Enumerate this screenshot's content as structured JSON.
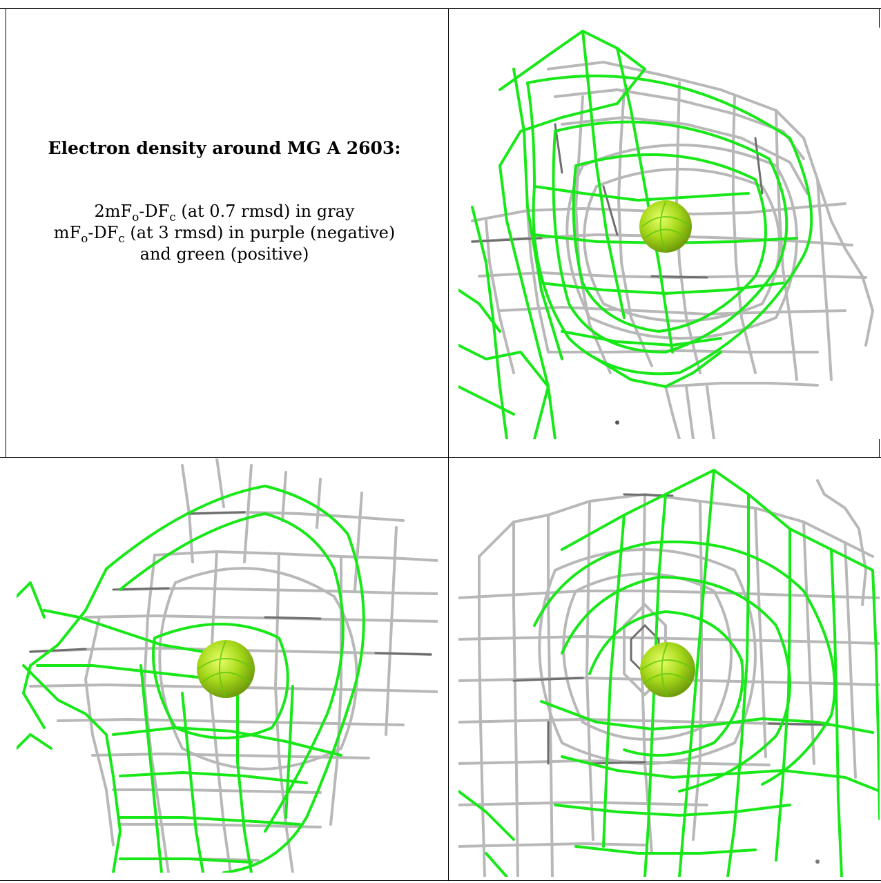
{
  "caption": {
    "title": "Electron density around MG A 2603:",
    "line1": {
      "pre": "2mF",
      "sub1": "o",
      "mid": "-DF",
      "sub2": "c",
      "post": " (at 0.7 rmsd) in gray"
    },
    "line2": {
      "pre": "mF",
      "sub1": "o",
      "mid": "-DF",
      "sub2": "c",
      "post": " (at 3 rmsd) in purple (negative)"
    },
    "line3": "and green (positive)"
  },
  "colors": {
    "gray_mesh": "#b8b8b8",
    "dark_gray_mesh": "#6e6e6e",
    "green_mesh": "#18e818",
    "ion_sphere": "#a6d81a",
    "border": "#000000"
  },
  "panels": [
    {
      "label": "",
      "view": "top-right",
      "ion": "MG A 2603"
    },
    {
      "label": "",
      "view": "bottom-left",
      "ion": "MG A 2603"
    },
    {
      "label": "",
      "view": "bottom-right",
      "ion": "MG A 2603"
    }
  ]
}
